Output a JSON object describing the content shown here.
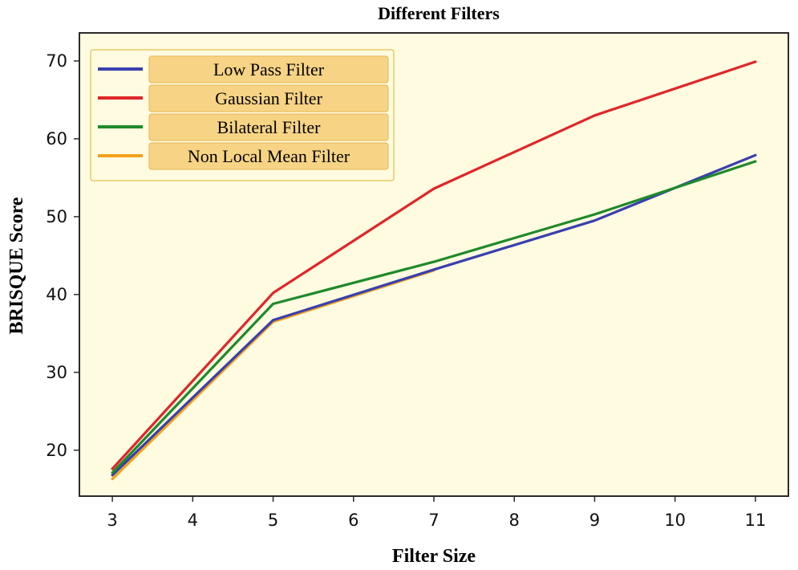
{
  "chart_data": {
    "type": "line",
    "title": "Different Filters",
    "xlabel": "Filter Size",
    "ylabel": "BRISQUE Score",
    "x": [
      3,
      5,
      7,
      9,
      11
    ],
    "xticks": [
      "3",
      "4",
      "5",
      "6",
      "7",
      "8",
      "9",
      "10",
      "11"
    ],
    "yticks": [
      "20",
      "30",
      "40",
      "50",
      "60",
      "70"
    ],
    "xlim": [
      2.6,
      11.4
    ],
    "ylim": [
      14.2,
      73.5
    ],
    "grid": false,
    "legend_position": "top-left",
    "background_color": "#fffbe0",
    "legend_box_color": "#f7d485",
    "series": [
      {
        "name": "Low Pass Filter",
        "color": "#3a3fae",
        "values": [
          16.8,
          36.7,
          43.2,
          49.5,
          57.9
        ]
      },
      {
        "name": "Gaussian Filter",
        "color": "#e0262a",
        "values": [
          17.6,
          40.2,
          53.6,
          63.0,
          69.9
        ]
      },
      {
        "name": "Bilateral Filter",
        "color": "#1e8a2a",
        "values": [
          17.1,
          38.8,
          44.2,
          50.3,
          57.1
        ]
      },
      {
        "name": "Non Local Mean Filter",
        "color": "#f4a11b",
        "values": [
          16.3,
          36.5,
          43.1,
          null,
          null
        ]
      }
    ]
  }
}
